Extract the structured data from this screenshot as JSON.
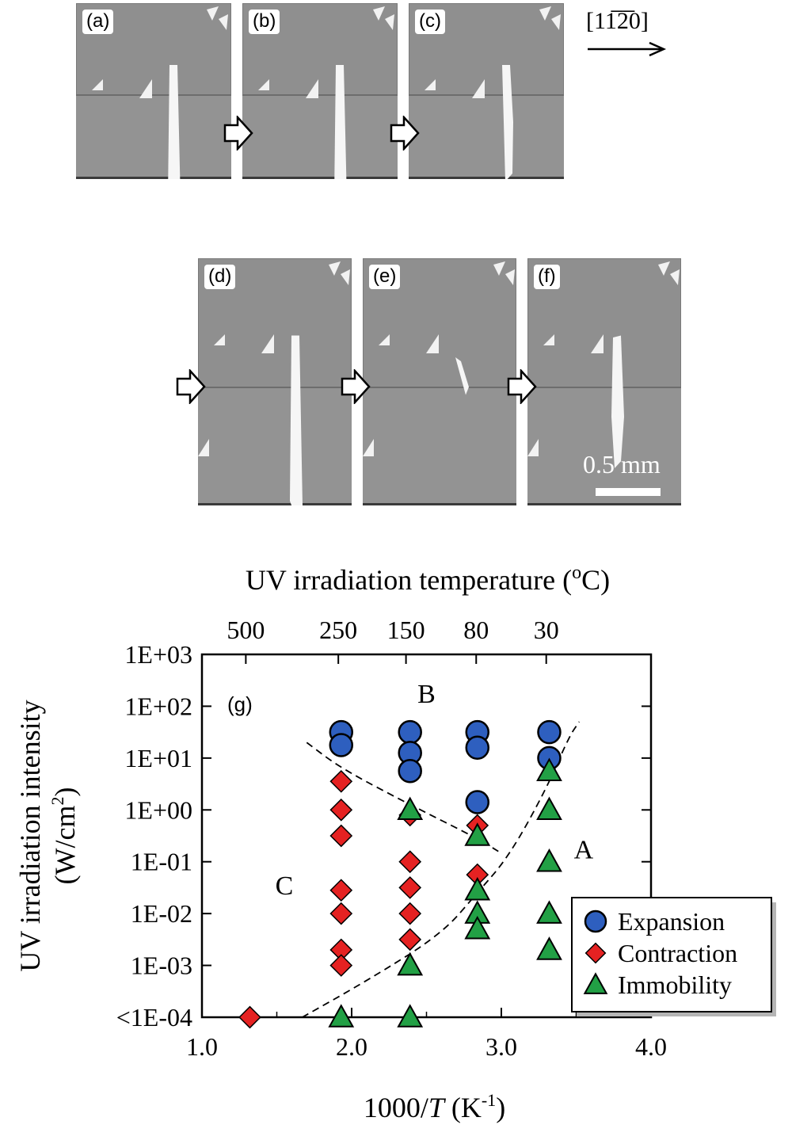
{
  "figure": {
    "direction_label": "[11̅2̅0]",
    "scale_bar_label": "0.5 mm",
    "panels": [
      {
        "label": "(a)",
        "crack": "full"
      },
      {
        "label": "(b)",
        "crack": "full"
      },
      {
        "label": "(c)",
        "crack": "upper"
      },
      {
        "label": "(d)",
        "crack": "full"
      },
      {
        "label": "(e)",
        "crack": "small"
      },
      {
        "label": "(f)",
        "crack": "mid"
      }
    ]
  },
  "chart_data": {
    "type": "scatter",
    "panel_label": "(g)",
    "xlabel": "1000/T (K⁻¹)",
    "xlabel_parts": {
      "pre": "1000/",
      "italic": "T",
      "post": " (K",
      "sup": "-1",
      "close": ")"
    },
    "top_axis_label": "UV irradiation temperature (°C)",
    "top_axis_label_parts": {
      "pre": "UV irradiation temperature (",
      "sup": "o",
      "post": "C)"
    },
    "ylabel_line1": "UV irradiation intensity",
    "ylabel_line2_parts": {
      "pre": "(W/cm",
      "sup": "2",
      "post": ")"
    },
    "xlim": [
      1.0,
      4.0
    ],
    "x_ticks": [
      {
        "value": 1.0,
        "label": "1.0"
      },
      {
        "value": 2.0,
        "label": "2.0"
      },
      {
        "value": 3.0,
        "label": "3.0"
      },
      {
        "value": 4.0,
        "label": "4.0"
      }
    ],
    "y_scale": "log",
    "ylim_log10": [
      -4,
      3
    ],
    "y_ticks": [
      {
        "log10": 3,
        "label": "1E+03"
      },
      {
        "log10": 2,
        "label": "1E+02"
      },
      {
        "log10": 1,
        "label": "1E+01"
      },
      {
        "log10": 0,
        "label": "1E+00"
      },
      {
        "log10": -1,
        "label": "1E-01"
      },
      {
        "log10": -2,
        "label": "1E-02"
      },
      {
        "log10": -3,
        "label": "1E-03"
      },
      {
        "log10": -4,
        "label": "<1E-04"
      }
    ],
    "top_ticks": [
      {
        "x": 1.293,
        "label": "500"
      },
      {
        "x": 1.911,
        "label": "250"
      },
      {
        "x": 2.363,
        "label": "150"
      },
      {
        "x": 2.832,
        "label": "80"
      },
      {
        "x": 3.3,
        "label": "30"
      }
    ],
    "region_labels": [
      {
        "text": "A",
        "x": 3.55,
        "y_log10": -0.75
      },
      {
        "text": "B",
        "x": 2.5,
        "y_log10": 2.25
      },
      {
        "text": "C",
        "x": 1.55,
        "y_log10": -1.45
      }
    ],
    "colors": {
      "Expansion": "#2e5fbf",
      "Contraction": "#e52222",
      "Immobility": "#22a045"
    },
    "legend_position": "right",
    "series": [
      {
        "name": "Expansion",
        "marker": "circle",
        "points": [
          [
            1.93,
            1.5
          ],
          [
            1.93,
            1.25
          ],
          [
            2.39,
            1.5
          ],
          [
            2.39,
            1.1
          ],
          [
            2.39,
            0.75
          ],
          [
            2.84,
            1.5
          ],
          [
            2.84,
            1.2
          ],
          [
            2.84,
            0.15
          ],
          [
            3.32,
            1.5
          ],
          [
            3.32,
            1.0
          ]
        ]
      },
      {
        "name": "Contraction",
        "marker": "diamond",
        "points": [
          [
            1.93,
            0.55
          ],
          [
            1.93,
            0.0
          ],
          [
            1.93,
            -0.5
          ],
          [
            1.93,
            -1.55
          ],
          [
            1.93,
            -2.0
          ],
          [
            1.93,
            -2.7
          ],
          [
            1.93,
            -3.0
          ],
          [
            2.39,
            -0.1
          ],
          [
            2.39,
            -1.0
          ],
          [
            2.39,
            -1.5
          ],
          [
            2.39,
            -2.0
          ],
          [
            2.39,
            -2.5
          ],
          [
            2.84,
            -0.3
          ],
          [
            2.84,
            -1.25
          ],
          [
            1.32,
            -4.0
          ]
        ]
      },
      {
        "name": "Immobility",
        "marker": "triangle",
        "points": [
          [
            1.93,
            -4.0
          ],
          [
            2.39,
            -4.0
          ],
          [
            2.39,
            -3.0
          ],
          [
            2.39,
            0.0
          ],
          [
            2.84,
            -0.5
          ],
          [
            2.84,
            -1.55
          ],
          [
            2.84,
            -2.0
          ],
          [
            2.84,
            -2.3
          ],
          [
            3.32,
            0.75
          ],
          [
            3.32,
            0.0
          ],
          [
            3.32,
            -1.0
          ],
          [
            3.32,
            -2.0
          ],
          [
            3.32,
            -2.7
          ]
        ]
      }
    ],
    "boundary_curves": [
      {
        "name": "B-C boundary",
        "points": [
          [
            1.7,
            1.3
          ],
          [
            1.93,
            0.8
          ],
          [
            2.39,
            0.1
          ],
          [
            2.84,
            -0.55
          ],
          [
            2.98,
            -0.8
          ]
        ]
      },
      {
        "name": "A-C boundary",
        "points": [
          [
            1.67,
            -4.0
          ],
          [
            2.1,
            -3.3
          ],
          [
            2.6,
            -2.4
          ],
          [
            2.84,
            -1.6
          ],
          [
            3.05,
            -0.9
          ],
          [
            3.3,
            0.4
          ],
          [
            3.45,
            1.4
          ],
          [
            3.52,
            1.7
          ]
        ]
      }
    ]
  }
}
